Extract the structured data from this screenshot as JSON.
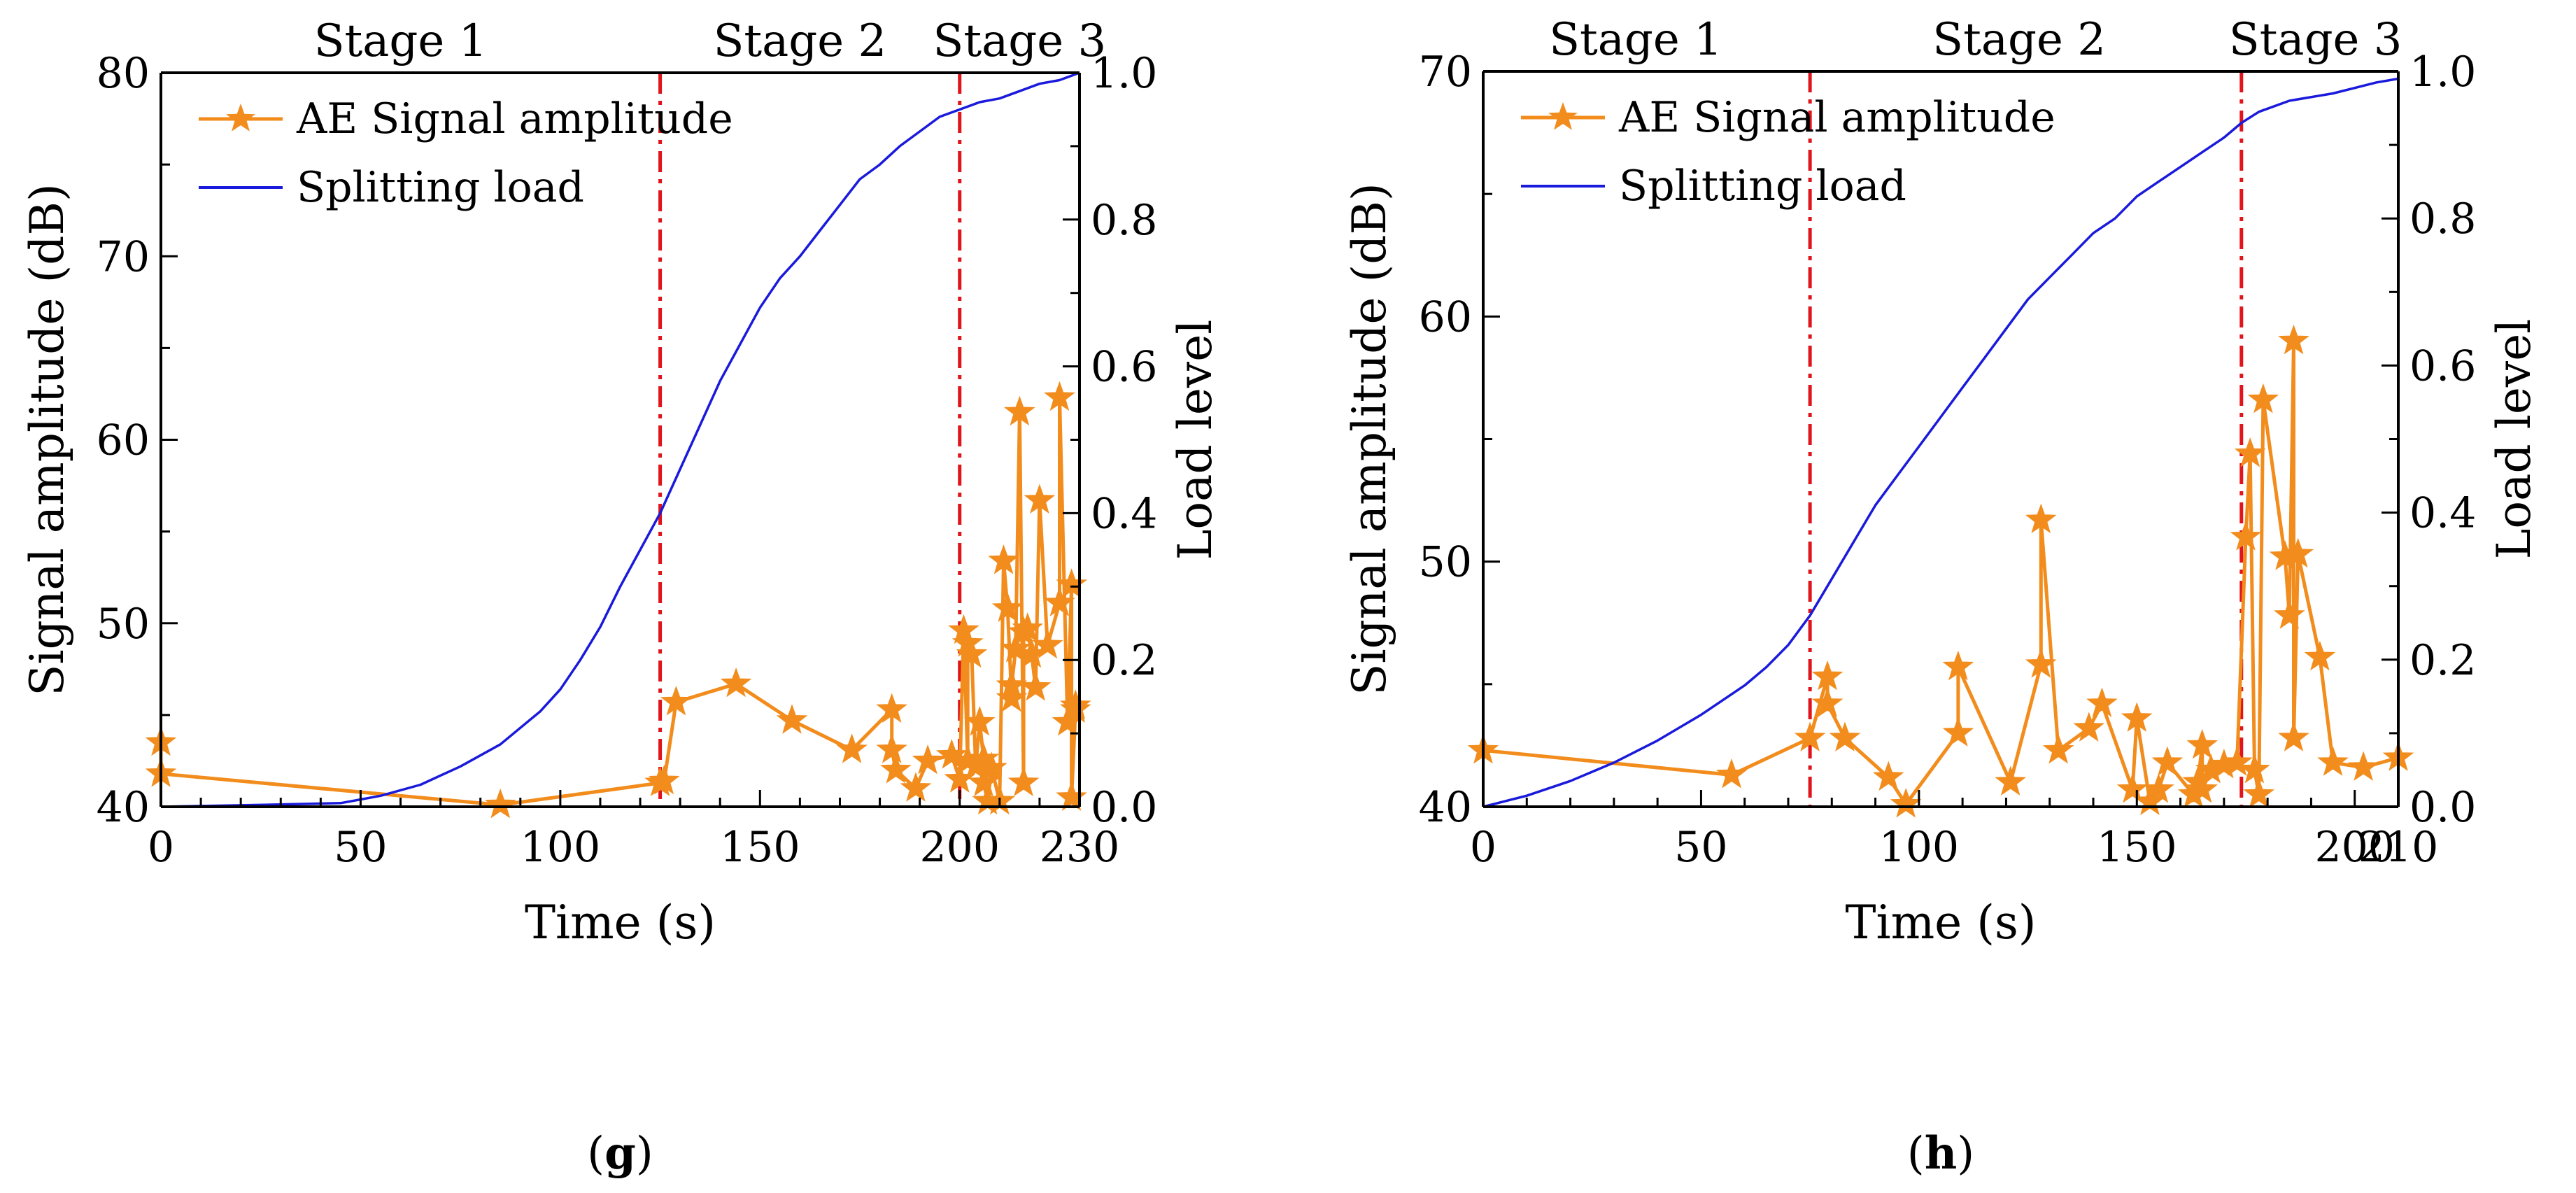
{
  "colors": {
    "ae": "#f28c1c",
    "load": "#1a1adc",
    "divider": "#e0141a",
    "axis": "#000000"
  },
  "chart_data": [
    {
      "type": "line",
      "panel_label": "g",
      "xlabel": "Time (s)",
      "ylabel": "Signal amplitude (dB)",
      "y2label": "Load level",
      "xlim": [
        0,
        230
      ],
      "ylim": [
        40,
        80
      ],
      "y2lim": [
        0,
        1.0
      ],
      "x_ticks": [
        0,
        50,
        100,
        150,
        200,
        230
      ],
      "y_ticks": [
        40,
        50,
        60,
        70,
        80
      ],
      "y2_ticks": [
        "0.0",
        "0.2",
        "0.4",
        "0.6",
        "0.8",
        "1.0"
      ],
      "stage_labels": [
        {
          "text": "Stage 1",
          "x": 60
        },
        {
          "text": "Stage 2",
          "x": 160
        },
        {
          "text": "Stage 3",
          "x": 215
        }
      ],
      "stage_dividers": [
        125,
        200
      ],
      "legend_position": "top-left",
      "series": [
        {
          "name": "AE Signal amplitude",
          "axis": "left",
          "marker": "star",
          "x": [
            0,
            0,
            85,
            125,
            126,
            129,
            144,
            158,
            173,
            183,
            183,
            184,
            189,
            192,
            198,
            200,
            201,
            202,
            202,
            203,
            204,
            205,
            206,
            206,
            207,
            208,
            210,
            211,
            212,
            213,
            213,
            214,
            215,
            216,
            216,
            217,
            218,
            219,
            220,
            222,
            225,
            225,
            227,
            228,
            228,
            229,
            229
          ],
          "y": [
            43.5,
            41.8,
            40.1,
            41.3,
            41.4,
            45.7,
            46.7,
            44.7,
            43.1,
            45.3,
            43.1,
            42.0,
            41.0,
            42.5,
            42.8,
            41.5,
            49.6,
            42.5,
            48.9,
            48.3,
            42.2,
            44.6,
            42.6,
            41.3,
            40.3,
            42.1,
            40.3,
            53.4,
            50.8,
            45.9,
            46.6,
            48.6,
            61.5,
            41.3,
            49.5,
            49.7,
            48.3,
            46.5,
            56.7,
            48.8,
            51.1,
            62.3,
            44.6,
            52.1,
            40.5,
            45.3,
            45.5
          ]
        },
        {
          "name": "Splitting load",
          "axis": "right",
          "marker": "none",
          "x": [
            0,
            20,
            45,
            55,
            65,
            75,
            85,
            95,
            100,
            105,
            110,
            115,
            120,
            125,
            130,
            135,
            140,
            145,
            150,
            155,
            160,
            165,
            170,
            175,
            180,
            185,
            190,
            195,
            200,
            205,
            210,
            215,
            220,
            225,
            230
          ],
          "y": [
            0.0,
            0.002,
            0.005,
            0.015,
            0.03,
            0.055,
            0.085,
            0.13,
            0.16,
            0.2,
            0.245,
            0.3,
            0.35,
            0.4,
            0.46,
            0.52,
            0.58,
            0.63,
            0.68,
            0.72,
            0.75,
            0.785,
            0.82,
            0.855,
            0.875,
            0.9,
            0.92,
            0.94,
            0.95,
            0.96,
            0.965,
            0.975,
            0.985,
            0.99,
            1.0
          ]
        }
      ]
    },
    {
      "type": "line",
      "panel_label": "h",
      "xlabel": "Time (s)",
      "ylabel": "Signal amplitude (dB)",
      "y2label": "Load level",
      "xlim": [
        0,
        210
      ],
      "ylim": [
        40,
        70
      ],
      "y2lim": [
        0,
        1.0
      ],
      "x_ticks": [
        0,
        50,
        100,
        150,
        200,
        210
      ],
      "y_ticks": [
        40,
        50,
        60,
        70
      ],
      "y2_ticks": [
        "0.0",
        "0.2",
        "0.4",
        "0.6",
        "0.8",
        "1.0"
      ],
      "stage_labels": [
        {
          "text": "Stage 1",
          "x": 35
        },
        {
          "text": "Stage 2",
          "x": 123
        },
        {
          "text": "Stage 3",
          "x": 191
        }
      ],
      "stage_dividers": [
        75,
        174
      ],
      "legend_position": "top-left",
      "series": [
        {
          "name": "AE Signal amplitude",
          "axis": "left",
          "marker": "star",
          "x": [
            0,
            57,
            75,
            79,
            79,
            83,
            93,
            97,
            109,
            109,
            121,
            128,
            128,
            132,
            139,
            142,
            149,
            150,
            153,
            155,
            157,
            163,
            164,
            165,
            165,
            167,
            170,
            173,
            175,
            176,
            177,
            178,
            179,
            184,
            185,
            186,
            186,
            187,
            192,
            195,
            202,
            210
          ],
          "y": [
            42.3,
            41.3,
            42.8,
            45.3,
            44.2,
            42.8,
            41.2,
            40.1,
            43.0,
            45.7,
            41.0,
            45.8,
            51.7,
            42.3,
            43.2,
            44.2,
            40.7,
            43.6,
            40.2,
            40.7,
            41.8,
            40.5,
            41.0,
            42.5,
            40.7,
            41.5,
            41.7,
            41.8,
            51.0,
            54.4,
            41.5,
            40.5,
            56.6,
            50.2,
            47.8,
            59.0,
            42.8,
            50.3,
            46.1,
            41.8,
            41.6,
            42.0
          ]
        },
        {
          "name": "Splitting load",
          "axis": "right",
          "marker": "none",
          "x": [
            0,
            10,
            20,
            30,
            40,
            50,
            60,
            65,
            70,
            75,
            80,
            85,
            90,
            95,
            100,
            105,
            110,
            115,
            120,
            125,
            130,
            135,
            140,
            145,
            150,
            155,
            160,
            165,
            170,
            174,
            178,
            185,
            195,
            205,
            210
          ],
          "y": [
            0.0,
            0.015,
            0.035,
            0.06,
            0.09,
            0.125,
            0.165,
            0.19,
            0.22,
            0.26,
            0.31,
            0.36,
            0.41,
            0.45,
            0.49,
            0.53,
            0.57,
            0.61,
            0.65,
            0.69,
            0.72,
            0.75,
            0.78,
            0.8,
            0.83,
            0.85,
            0.87,
            0.89,
            0.91,
            0.93,
            0.945,
            0.96,
            0.97,
            0.985,
            0.99
          ]
        }
      ]
    }
  ]
}
